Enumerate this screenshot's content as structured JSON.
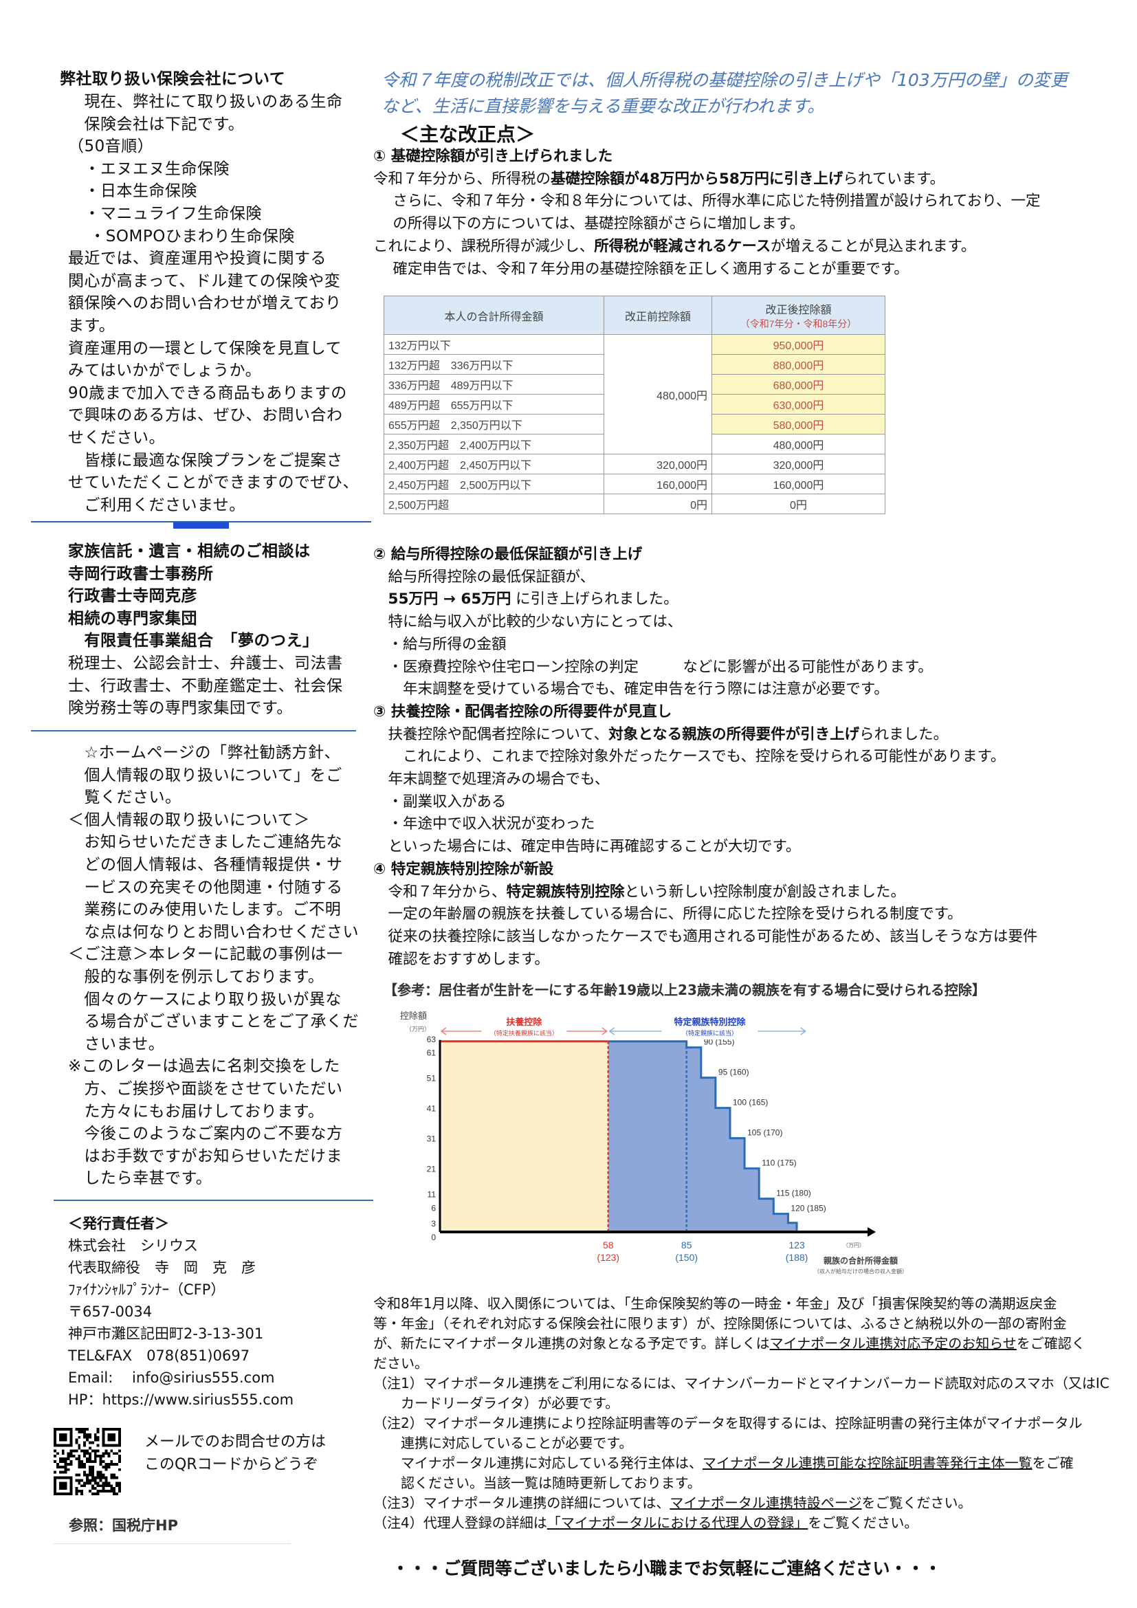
{
  "left": {
    "insurers_title": "弊社取り扱い保険会社について",
    "insurers_lines": [
      [
        "　現在、弊社にて取り扱いのある生命"
      ],
      [
        "　保険会社は下記です。"
      ],
      [
        "（50音順）"
      ],
      [
        "　・エヌエヌ生命保険"
      ],
      [
        "　・日本生命保険"
      ],
      [
        "　・マニュライフ生命保険"
      ],
      [
        "　 ・SOMPOひまわり生命保険"
      ],
      [
        "最近では、資産運用や投資に関する"
      ],
      [
        "関心が高まって、ドル建ての保険や変"
      ],
      [
        "額保険へのお問い合わせが増えており"
      ],
      [
        "ます。"
      ],
      [
        "資産運用の一環として保険を見直して"
      ],
      [
        "みてはいかがでしょうか。"
      ],
      [
        "90歳まで加入できる商品もありますの"
      ],
      [
        "で興味のある方は、ぜひ、お問い合わ"
      ],
      [
        "せください。"
      ],
      [
        "　皆様に最適な保険プランをご提案さ"
      ],
      [
        "せていただくことができますのでぜひ、"
      ],
      [
        "　ご利用くださいませ。"
      ]
    ],
    "consult_lines": [
      [
        {
          "t": "家族信託・遺言・相続のご相談は",
          "s": "b"
        }
      ],
      [
        {
          "t": "寺岡行政書士事務所",
          "s": "b"
        }
      ],
      [
        {
          "t": "行政書士寺岡克彦",
          "s": "b"
        }
      ],
      [
        {
          "t": "相続の専門家集団",
          "s": "b"
        }
      ],
      [
        {
          "t": "　有限責任事業組合　「夢のつえ」",
          "s": "b"
        }
      ],
      [
        "税理士、公認会計士、弁護士、司法書"
      ],
      [
        "士、行政書士、不動産鑑定士、社会保"
      ],
      [
        "険労務士等の専門家集団です。"
      ]
    ],
    "privacy_lines": [
      [
        "　☆ホームページの「弊社勧誘方針、"
      ],
      [
        "　個人情報の取り扱いについて」をご"
      ],
      [
        "　覧ください。"
      ],
      [
        "＜個人情報の取り扱いについて＞"
      ],
      [
        "　お知らせいただきましたご連絡先な"
      ],
      [
        "　どの個人情報は、各種情報提供・サ"
      ],
      [
        "　ービスの充実その他関連・付随する"
      ],
      [
        "　業務にのみ使用いたします。ご不明"
      ],
      [
        "　な点は何なりとお問い合わせください"
      ],
      [
        "＜ご注意＞本レターに記載の事例は一"
      ],
      [
        "　般的な事例を例示しております。"
      ],
      [
        "　個々のケースにより取り扱いが異な"
      ],
      [
        "　る場合がございますことをご了承くだ"
      ],
      [
        "　さいませ。"
      ],
      [
        "※このレターは過去に名刺交換をした"
      ],
      [
        "　方、ご挨拶や面談をさせていただい"
      ],
      [
        "　た方々にもお届けしております。"
      ],
      [
        "　今後このようなご案内のご不要な方"
      ],
      [
        "　はお手数ですがお知らせいただけま"
      ],
      [
        "　したら幸甚です。"
      ]
    ],
    "publisher_lines": [
      [
        {
          "t": "＜発行責任者＞",
          "s": "b"
        }
      ],
      [
        "株式会社　シリウス"
      ],
      [
        "代表取締役　寺　岡　克　彦"
      ],
      [
        "ﾌｧｲﾅﾝｼｬﾙﾌﾟﾗﾝﾅｰ（CFP）"
      ],
      [
        "〒657-0034"
      ],
      [
        "神戸市灘区記田町2-3-13-301"
      ],
      [
        "TEL&FAX　078(851)0697"
      ],
      [
        "Email:　 info@sirius555.com"
      ],
      [
        "HP：https://www.sirius555.com"
      ]
    ],
    "qr_text": [
      "メールでのお問合せの方は",
      "このQRコードからどうぞ"
    ],
    "reference": "参照：国税庁HP"
  },
  "right": {
    "intro": [
      "令和７年度の税制改正では、個人所得税の基礎控除の引き上げや「103万円の壁」の変更",
      "など、生活に直接影響を与える重要な改正が行われます。"
    ],
    "main_heading": "＜主な改正点＞",
    "section1_lines": [
      [
        {
          "t": "① 基礎控除額が引き上げられました",
          "s": "b"
        }
      ],
      [
        "令和７年分から、所得税の",
        {
          "t": "基礎控除額が48万円から58万円に引き上げ",
          "s": "b"
        },
        "られています。"
      ],
      [
        "　 さらに、令和７年分・令和８年分については、所得水準に応じた特例措置が設けられており、一定"
      ],
      [
        "　 の所得以下の方については、基礎控除額がさらに増加します。"
      ],
      [
        "これにより、課税所得が減少し、",
        {
          "t": "所得税が軽減されるケース",
          "s": "b"
        },
        "が増えることが見込まれます。"
      ],
      [
        "　 確定申告では、令和７年分用の基礎控除額を正しく適用することが重要です。"
      ]
    ],
    "table": {
      "headers": [
        "本人の合計所得金額",
        "改正前控除額",
        "改正後控除額"
      ],
      "header_sub": "（令和7年分・令和8年分）",
      "rows": [
        {
          "income": "132万円以下",
          "before": "480,000円",
          "after": "950,000円"
        },
        {
          "income": "132万円超　336万円以下",
          "after": "880,000円"
        },
        {
          "income": "336万円超　489万円以下",
          "after": "680,000円"
        },
        {
          "income": "489万円超　655万円以下",
          "after": "630,000円"
        },
        {
          "income": "655万円超　2,350万円以下",
          "after": "580,000円"
        },
        {
          "income": "2,350万円超　2,400万円以下",
          "after": "480,000円"
        },
        {
          "income": "2,400万円超　2,450万円以下",
          "before": "320,000円",
          "after": "320,000円"
        },
        {
          "income": "2,450万円超　2,500万円以下",
          "before": "160,000円",
          "after": "160,000円"
        },
        {
          "income": "2,500万円超",
          "before": "0円",
          "after": "0円"
        }
      ],
      "highlight_color": "#fdf7c3"
    },
    "sections_lines": [
      [
        {
          "t": "② 給与所得控除の最低保証額が引き上げ",
          "s": "b"
        }
      ],
      [
        "　給与所得控除の最低保証額が、"
      ],
      [
        {
          "t": "　55万円 → 65万円",
          "s": "b"
        },
        " に引き上げられました。"
      ],
      [
        "　特に給与収入が比較的少ない方にとっては、"
      ],
      [
        "　・給与所得の金額"
      ],
      [
        "　・医療費控除や住宅ローン控除の判定　　　などに影響が出る可能性があります。"
      ],
      [
        "　　年末調整を受けている場合でも、確定申告を行う際には注意が必要です。"
      ],
      [
        {
          "t": "③ 扶養控除・配偶者控除の所得要件が見直し",
          "s": "b"
        }
      ],
      [
        "　扶養控除や配偶者控除について、",
        {
          "t": "対象となる親族の所得要件が引き上げ",
          "s": "b"
        },
        "られました。"
      ],
      [
        "　　これにより、これまで控除対象外だったケースでも、控除を受けられる可能性があります。"
      ],
      [
        "　年末調整で処理済みの場合でも、"
      ],
      [
        "　・副業収入がある"
      ],
      [
        "　・年途中で収入状況が変わった"
      ],
      [
        "　といった場合には、確定申告時に再確認することが大切です。"
      ],
      [
        {
          "t": "④ 特定親族特別控除が新設",
          "s": "b"
        }
      ],
      [
        "　令和７年分から、",
        {
          "t": "特定親族特別控除",
          "s": "b"
        },
        "という新しい控除制度が創設されました。"
      ],
      [
        "　一定の年齢層の親族を扶養している場合に、所得に応じた控除を受けられる制度です。"
      ],
      [
        "　従来の扶養控除に該当しなかったケースでも適用される可能性があるため、該当しそうな方は要件"
      ],
      [
        "　確認をおすすめします。"
      ]
    ],
    "chart_title": "【参考：居住者が生計を一にする年齢19歳以上23歳未満の親族を有する場合に受けられる控除】",
    "notes_lines": [
      [
        "令和8年1月以降、収入関係については、「生命保険契約等の一時金・年金」及び「損害保険契約等の満期返戻金"
      ],
      [
        "等・年金」（それぞれ対応する保険会社に限ります）が、控除関係については、ふるさと納税以外の一部の寄附金"
      ],
      [
        "が、新たにマイナポータル連携の対象となる予定です。詳しくは",
        {
          "t": "マイナポータル連携対応予定のお知らせ",
          "s": "link"
        },
        "をご確認く"
      ],
      [
        "ださい。"
      ],
      [
        "（注1）マイナポータル連携をご利用になるには、マイナンバーカードとマイナンバーカード読取対応のスマホ（又はIC"
      ],
      [
        "　　カードリーダライタ）が必要です。"
      ],
      [
        "（注2）マイナポータル連携により控除証明書等のデータを取得するには、控除証明書の発行主体がマイナポータル"
      ],
      [
        "　　連携に対応していることが必要です。"
      ],
      [
        "　　マイナポータル連携に対応している発行主体は、",
        {
          "t": "マイナポータル連携可能な控除証明書等発行主体一覧",
          "s": "link"
        },
        "をご確"
      ],
      [
        "　　認ください。当該一覧は随時更新しております。"
      ],
      [
        "（注3）マイナポータル連携の詳細については、",
        {
          "t": "マイナポータル連携特設ページ",
          "s": "link"
        },
        "をご覧ください。"
      ],
      [
        "（注4）代理人登録の詳細は",
        {
          "t": "「マイナポータルにおける代理人の登録」",
          "s": "link"
        },
        "をご覧ください。"
      ]
    ],
    "closing": "・・・ご質問等ございましたら小職までお気軽にご連絡ください・・・"
  },
  "colors": {
    "intro_blue": "#4a78bd",
    "divider_blue": "#2f5fb0",
    "fuyo_red": "#e0302a",
    "tokutei_blue": "#2b6cb5",
    "fuyo_fill": "#fdefc8",
    "tokutei_fill": "#8ea7d9"
  },
  "chart_data": {
    "type": "area",
    "step": true,
    "ylabel": "控除額",
    "yunit": "（万円）",
    "xlabel": "親族の合計所得金額",
    "xlabel_sub": "（収入が給与だけの場合の収入金額）",
    "xunit": "（万円）",
    "yticks": [
      0,
      3,
      6,
      11,
      21,
      31,
      41,
      51,
      61,
      63
    ],
    "ylim": [
      0,
      63
    ],
    "xlim": [
      0,
      127
    ],
    "xticks": [
      {
        "x": 58,
        "label": "58",
        "sub": "(123)",
        "color": "#e0302a"
      },
      {
        "x": 85,
        "label": "85",
        "sub": "(150)",
        "color": "#2b6cb5"
      },
      {
        "x": 123,
        "label": "123",
        "sub": "(188)",
        "color": "#2b6cb5"
      }
    ],
    "regions": [
      {
        "name": "扶養控除",
        "sub": "（特定扶養親族に該当）",
        "from": 0,
        "to": 58,
        "value": 63,
        "color": "#e0302a"
      },
      {
        "name": "特定親族特別控除",
        "sub": "（特定親族に該当）",
        "from": 58,
        "to": 127,
        "color": "#2b6cb5"
      }
    ],
    "steps": [
      {
        "to": 85,
        "y": 63,
        "label": ""
      },
      {
        "to": 90,
        "y": 61,
        "label": "90 (155)"
      },
      {
        "to": 95,
        "y": 51,
        "label": "95 (160)"
      },
      {
        "to": 100,
        "y": 41,
        "label": "100 (165)"
      },
      {
        "to": 105,
        "y": 31,
        "label": "105 (170)"
      },
      {
        "to": 110,
        "y": 21,
        "label": "110 (175)"
      },
      {
        "to": 115,
        "y": 11,
        "label": "115 (180)"
      },
      {
        "to": 120,
        "y": 6,
        "label": "120 (185)"
      },
      {
        "to": 123,
        "y": 3,
        "label": ""
      },
      {
        "to": 127,
        "y": 0,
        "label": ""
      }
    ]
  }
}
